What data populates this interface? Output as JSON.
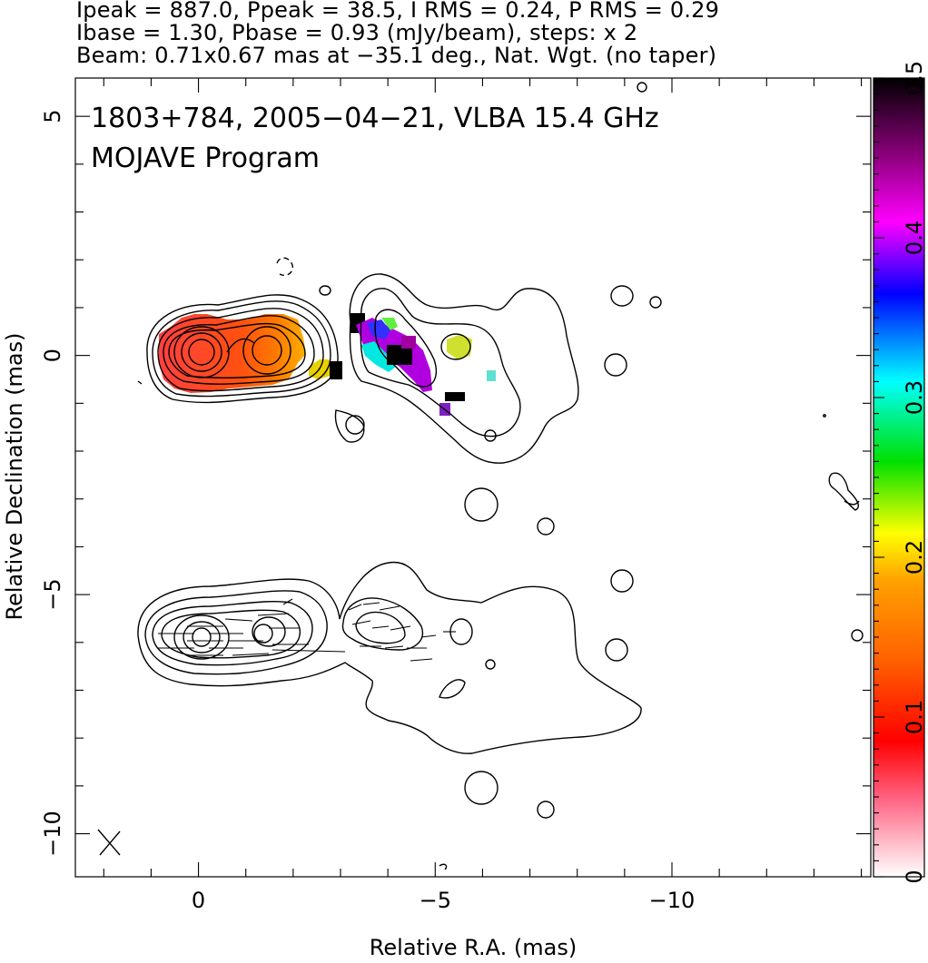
{
  "header": {
    "line1": "Ipeak = 887.0, Ppeak = 38.5, I RMS = 0.24, P RMS = 0.29",
    "line2": "Ibase = 1.30, Pbase = 0.93 (mJy/beam), steps: x 2",
    "line3": "Beam: 0.71x0.67 mas at −35.1 deg., Nat. Wgt. (no taper)"
  },
  "annotation": {
    "line1": "1803+784, 2005−04−21, VLBA 15.4 GHz",
    "line2": "MOJAVE Program"
  },
  "chart_data": {
    "type": "contour",
    "xlabel": "Relative R.A. (mas)",
    "ylabel": "Relative Declination (mas)",
    "xlim": [
      2.6,
      -14.2
    ],
    "ylim": [
      -10.9,
      5.8
    ],
    "xticks": [
      0,
      -5,
      -10
    ],
    "xtick_labels": [
      "0",
      "−5",
      "−10"
    ],
    "yticks": [
      5,
      0,
      -5,
      -10
    ],
    "ytick_labels": [
      "5",
      "0",
      "−5",
      "−10"
    ],
    "colorbar": {
      "range": [
        0,
        0.5
      ],
      "ticks": [
        0,
        0.1,
        0.2,
        0.3,
        0.4,
        0.5
      ],
      "tick_labels": [
        "0",
        "0.1",
        "0.2",
        "0.3",
        "0.4",
        "0.5"
      ],
      "colormap": [
        "#ffffff",
        "#ff0000",
        "#ff8000",
        "#ffff00",
        "#00ff00",
        "#00ffff",
        "#0000ff",
        "#ff00ff",
        "#000000"
      ]
    },
    "panels": [
      {
        "name": "fractional polarization",
        "y_offset": 0
      },
      {
        "name": "EVPA",
        "y_offset": -6
      }
    ]
  },
  "colors": {
    "contour": "#000000",
    "axis": "#000000"
  }
}
